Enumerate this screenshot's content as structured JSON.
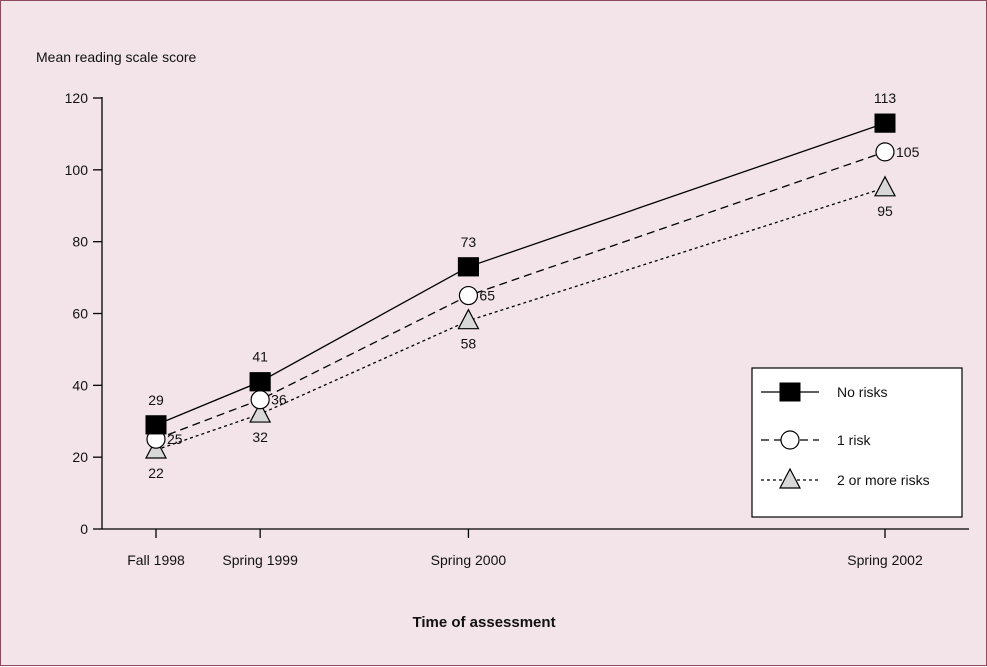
{
  "chart_data": {
    "type": "line",
    "title": "",
    "ylabel": "Mean reading scale score",
    "xlabel": "Time of assessment",
    "ylim": [
      0,
      120
    ],
    "yticks": [
      0,
      20,
      40,
      60,
      80,
      100,
      120
    ],
    "categories": [
      "Fall 1998",
      "Spring 1999",
      "Spring 2000",
      "Spring 2002"
    ],
    "x_years": [
      1998.75,
      1999.25,
      2000.25,
      2002.25
    ],
    "grid": false,
    "legend_position": "lower-right",
    "series": [
      {
        "name": "No risks",
        "values": [
          29,
          41,
          73,
          113
        ],
        "marker": "filled-square",
        "line_style": "solid",
        "color": "#000000"
      },
      {
        "name": "1 risk",
        "values": [
          25,
          36,
          65,
          105
        ],
        "marker": "open-circle",
        "line_style": "dashed",
        "color": "#000000"
      },
      {
        "name": "2 or more risks",
        "values": [
          22,
          32,
          58,
          95
        ],
        "marker": "open-triangle",
        "line_style": "dotted",
        "color": "#000000"
      }
    ]
  },
  "colors": {
    "background": "#f2e4e8",
    "border": "#8e4a5c",
    "marker_fill_open": "#ffffff",
    "triangle_fill": "#d8d8d8"
  }
}
